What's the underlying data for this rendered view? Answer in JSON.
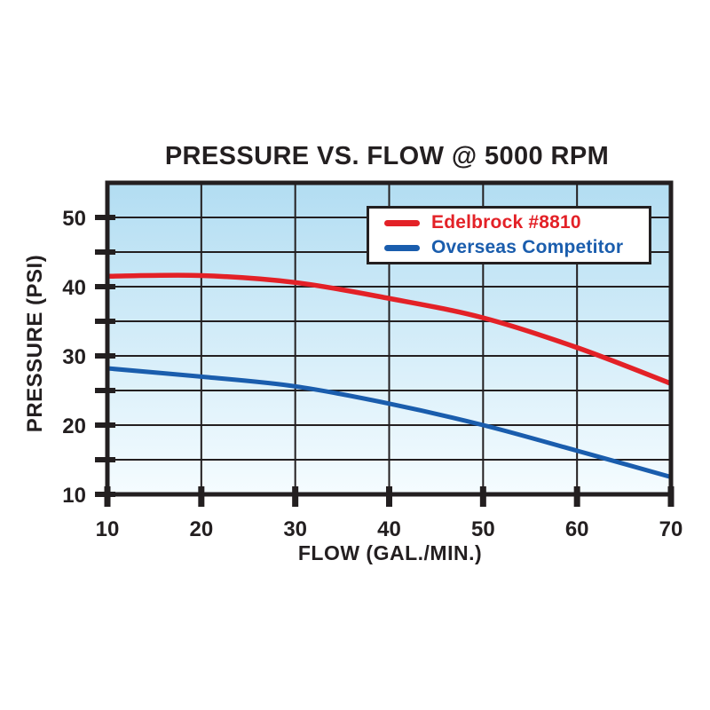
{
  "chart_data": {
    "type": "line",
    "title": "PRESSURE VS. FLOW @ 5000 RPM",
    "xlabel": "FLOW (GAL./MIN.)",
    "ylabel": "PRESSURE (PSI)",
    "x": [
      10,
      20,
      30,
      40,
      50,
      60,
      70
    ],
    "series": [
      {
        "name": "Edelbrock #8810",
        "color": "#e32127",
        "width": 5.5,
        "values": [
          41.5,
          41.6,
          40.6,
          38.3,
          35.5,
          31.2,
          26.0
        ]
      },
      {
        "name": "Overseas Competitor",
        "color": "#1a5dad",
        "width": 5.0,
        "values": [
          28.2,
          27.0,
          25.6,
          23.1,
          20.0,
          16.3,
          12.5
        ]
      }
    ],
    "xlim": [
      10,
      70
    ],
    "ylim": [
      10,
      55
    ],
    "x_ticks": [
      10,
      20,
      30,
      40,
      50,
      60,
      70
    ],
    "y_ticks": [
      10,
      15,
      20,
      25,
      30,
      35,
      40,
      45,
      50
    ],
    "y_labeled_ticks": [
      10,
      20,
      30,
      40,
      50
    ],
    "grid": true,
    "legend_position": "top-right",
    "plot_background_gradient": {
      "top": "#b2ddf2",
      "bottom": "#f5fcff"
    }
  },
  "style": {
    "page_background": "#ffffff",
    "axis_color": "#231f20",
    "grid_color": "#231f20",
    "text_color": "#231f20",
    "tick_label_font_px": 24
  }
}
